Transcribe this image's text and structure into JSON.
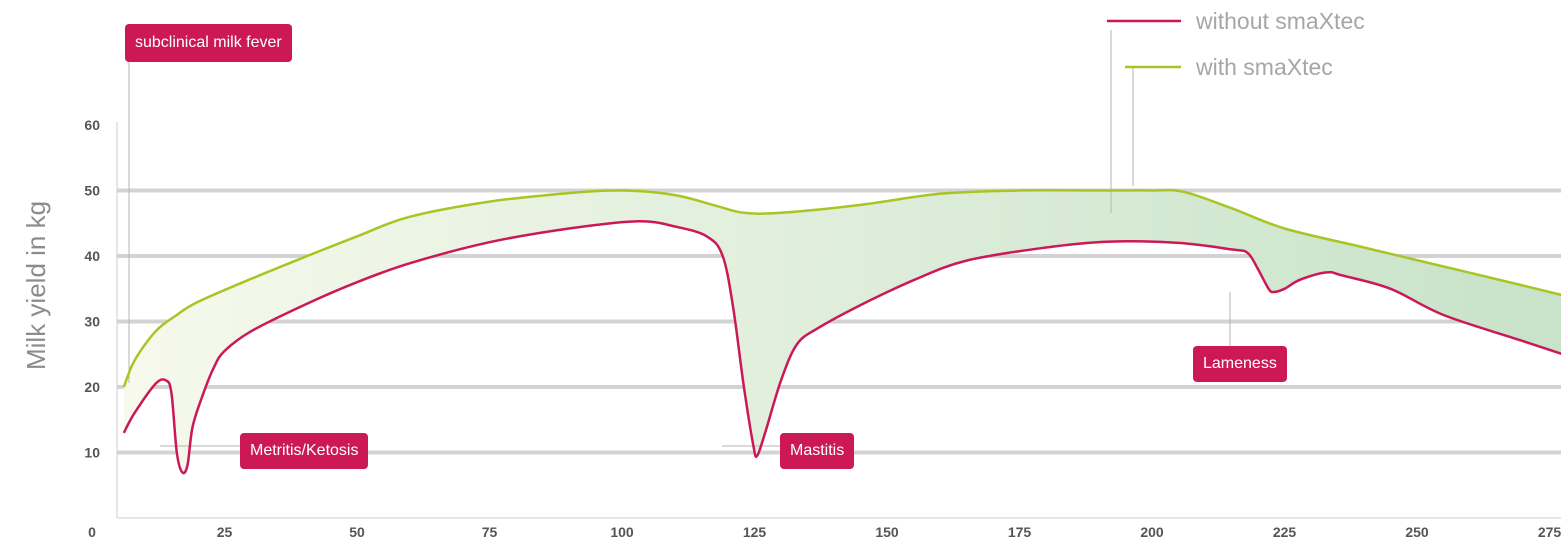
{
  "colors": {
    "without": "#cc1855",
    "with": "#a8c523",
    "grid": "#d3d3d3",
    "axis": "#cccccc",
    "fill_light": "#f6f9ec",
    "fill_dark": "#c6e2c8"
  },
  "chart_data": {
    "type": "line",
    "ylabel": "Milk yield in kg",
    "xlabel": "",
    "xlim": [
      0,
      275
    ],
    "ylim": [
      0,
      60
    ],
    "x_ticks": [
      "0",
      "25",
      "50",
      "75",
      "100",
      "125",
      "150",
      "175",
      "200",
      "225",
      "250",
      "275"
    ],
    "y_ticks": [
      "10",
      "20",
      "30",
      "40",
      "50",
      "60"
    ],
    "grid": "horizontal",
    "legend_position": "top-right",
    "series": [
      {
        "name": "without smaXtec",
        "points": [
          [
            6,
            13
          ],
          [
            8,
            16
          ],
          [
            12,
            20.5
          ],
          [
            14,
            21
          ],
          [
            15,
            19
          ],
          [
            16,
            10
          ],
          [
            17,
            7
          ],
          [
            18,
            8
          ],
          [
            19,
            14
          ],
          [
            21,
            19
          ],
          [
            23,
            23
          ],
          [
            25,
            25.5
          ],
          [
            30,
            28.5
          ],
          [
            40,
            32.5
          ],
          [
            50,
            36
          ],
          [
            60,
            38.9
          ],
          [
            75,
            42.1
          ],
          [
            90,
            44.2
          ],
          [
            103,
            45.3
          ],
          [
            110,
            44.5
          ],
          [
            116,
            43
          ],
          [
            119,
            40
          ],
          [
            121,
            32
          ],
          [
            123,
            20
          ],
          [
            124.8,
            11
          ],
          [
            125.5,
            9.5
          ],
          [
            127,
            13
          ],
          [
            130,
            21
          ],
          [
            133,
            26.5
          ],
          [
            137,
            29
          ],
          [
            145,
            32.5
          ],
          [
            155,
            36.3
          ],
          [
            165,
            39.3
          ],
          [
            180,
            41.3
          ],
          [
            192,
            42.2
          ],
          [
            205,
            42
          ],
          [
            215,
            41
          ],
          [
            218,
            40.5
          ],
          [
            220,
            38
          ],
          [
            222,
            35
          ],
          [
            223,
            34.5
          ],
          [
            225,
            35
          ],
          [
            228,
            36.4
          ],
          [
            233,
            37.5
          ],
          [
            236,
            37
          ],
          [
            245,
            35
          ],
          [
            255,
            31
          ],
          [
            270,
            27
          ],
          [
            285,
            23
          ]
        ]
      },
      {
        "name": "with smaXtec",
        "points": [
          [
            6,
            20
          ],
          [
            8,
            24
          ],
          [
            12,
            28.5
          ],
          [
            16,
            31
          ],
          [
            20,
            33
          ],
          [
            30,
            36.5
          ],
          [
            40,
            39.8
          ],
          [
            50,
            43
          ],
          [
            60,
            46
          ],
          [
            75,
            48.3
          ],
          [
            90,
            49.6
          ],
          [
            100,
            50
          ],
          [
            110,
            49.3
          ],
          [
            118,
            47.6
          ],
          [
            123,
            46.6
          ],
          [
            130,
            46.6
          ],
          [
            145,
            47.8
          ],
          [
            160,
            49.5
          ],
          [
            175,
            50
          ],
          [
            190,
            50
          ],
          [
            200,
            50
          ],
          [
            206,
            49.8
          ],
          [
            215,
            47.3
          ],
          [
            225,
            44.2
          ],
          [
            240,
            41.3
          ],
          [
            255,
            38.4
          ],
          [
            270,
            35.5
          ],
          [
            285,
            32.5
          ]
        ]
      }
    ],
    "annotations": [
      {
        "label": "subclinical milk fever",
        "x": 7
      },
      {
        "label": "Metritis/Ketosis",
        "x": 17
      },
      {
        "label": "Mastitis",
        "x": 125.5
      },
      {
        "label": "Lameness",
        "x": 223
      }
    ]
  }
}
